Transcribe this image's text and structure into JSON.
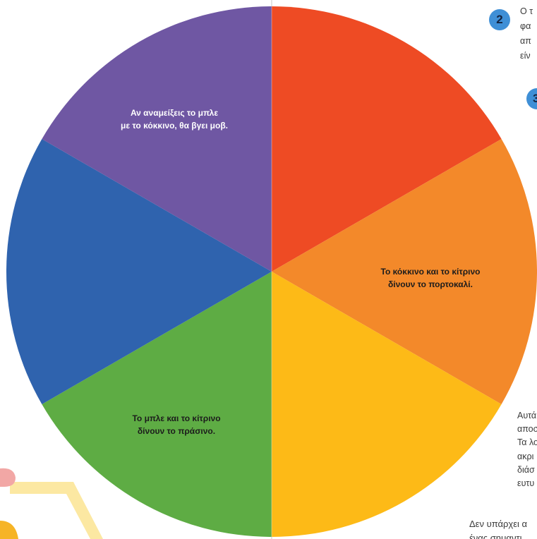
{
  "wheel": {
    "segment_colors": [
      "#EE4B24",
      "#F3892A",
      "#FDBA17",
      "#5EAC44",
      "#2F63AE",
      "#6F57A3"
    ],
    "purple_label": [
      "Αν αναμείξεις το μπλε",
      "με το κόκκινο, θα βγει μοβ."
    ],
    "orange_label": [
      "Το κόκκινο και το κίτρινο",
      "δίνουν το πορτοκαλί."
    ],
    "green_label": [
      "Το μπλε και το κίτρινο",
      "δίνουν το πράσινο."
    ]
  },
  "badge_color": "#3F8FD6",
  "steps": [
    {
      "number": "2",
      "text": [
        "Ο τ",
        "φα",
        "απ",
        "είν"
      ]
    },
    {
      "number": "3"
    }
  ],
  "side_text": [
    "Αυτά",
    "αποσ",
    "Τα λο",
    "ακρι",
    "διάσ",
    "ευτυ"
  ],
  "bottom_text": [
    "Δεν υπάρχει α",
    "ένας σημαντι"
  ]
}
